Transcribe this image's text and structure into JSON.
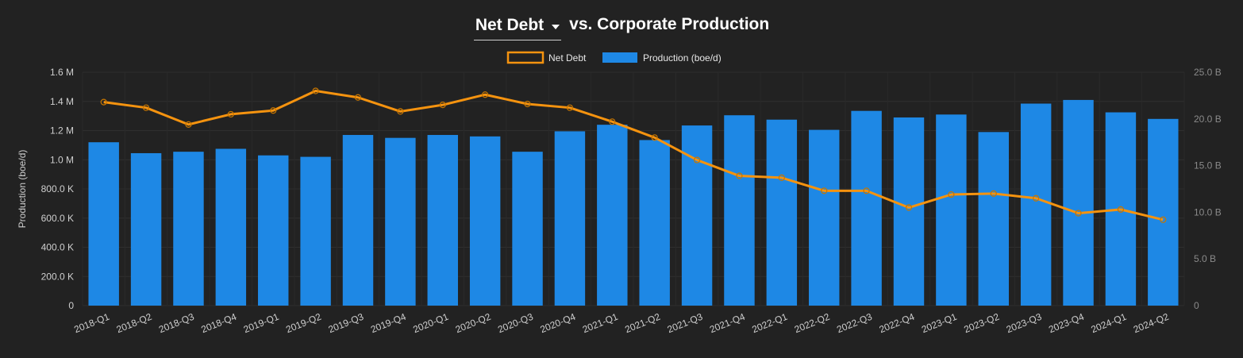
{
  "header": {
    "metric_selected": "Net Debt",
    "title_rest": "vs. Corporate Production",
    "selector_icon": "caret-down-icon"
  },
  "chart_data": {
    "type": "bar",
    "categories": [
      "2018-Q1",
      "2018-Q2",
      "2018-Q3",
      "2018-Q4",
      "2019-Q1",
      "2019-Q2",
      "2019-Q3",
      "2019-Q4",
      "2020-Q1",
      "2020-Q2",
      "2020-Q3",
      "2020-Q4",
      "2021-Q1",
      "2021-Q2",
      "2021-Q3",
      "2021-Q4",
      "2022-Q1",
      "2022-Q2",
      "2022-Q3",
      "2022-Q4",
      "2023-Q1",
      "2023-Q2",
      "2023-Q3",
      "2023-Q4",
      "2024-Q1",
      "2024-Q2"
    ],
    "series": [
      {
        "name": "Production (boe/d)",
        "type": "bar",
        "axis": "left",
        "color": "#1e88e5",
        "values": [
          1120000,
          1045000,
          1055000,
          1075000,
          1030000,
          1020000,
          1170000,
          1150000,
          1170000,
          1160000,
          1055000,
          1195000,
          1240000,
          1135000,
          1235000,
          1305000,
          1275000,
          1205000,
          1335000,
          1290000,
          1310000,
          1190000,
          1385000,
          1410000,
          1325000,
          1280000
        ]
      },
      {
        "name": "Net Debt",
        "type": "line",
        "axis": "right",
        "color": "#f5930f",
        "values": [
          21.8,
          21.2,
          19.4,
          20.5,
          20.9,
          23.0,
          22.3,
          20.8,
          21.5,
          22.6,
          21.6,
          21.2,
          19.7,
          18.0,
          15.6,
          13.9,
          13.7,
          12.3,
          12.3,
          10.5,
          11.9,
          12.0,
          11.5,
          9.9,
          10.3,
          9.2
        ]
      }
    ],
    "y_left": {
      "label": "Production (boe/d)",
      "range": [
        0,
        1600000
      ],
      "ticks": [
        0,
        200000,
        400000,
        600000,
        800000,
        1000000,
        1200000,
        1400000,
        1600000
      ],
      "tick_labels": [
        "0",
        "200.0 K",
        "400.0 K",
        "600.0 K",
        "800.0 K",
        "1.0 M",
        "1.2 M",
        "1.4 M",
        "1.6 M"
      ]
    },
    "y_right": {
      "range": [
        0,
        25
      ],
      "ticks": [
        0,
        5,
        10,
        15,
        20,
        25
      ],
      "tick_labels": [
        "0",
        "5.0 B",
        "10.0 B",
        "15.0 B",
        "20.0 B",
        "25.0 B"
      ]
    },
    "legend": {
      "position": "top-center",
      "entries": [
        "Net Debt",
        "Production (boe/d)"
      ]
    },
    "grid": true
  }
}
